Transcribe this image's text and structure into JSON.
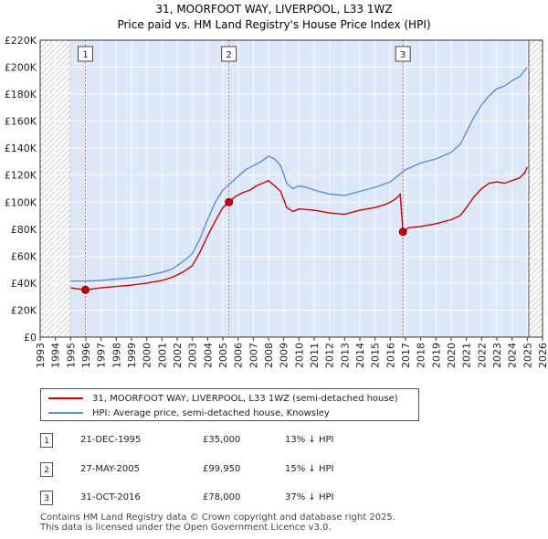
{
  "chart_data": {
    "type": "line",
    "title": "31, MOORFOOT WAY, LIVERPOOL, L33 1WZ",
    "subtitle": "Price paid vs. HM Land Registry's House Price Index (HPI)",
    "xlim": [
      1993,
      2026
    ],
    "ylim": [
      0,
      220000
    ],
    "ytick_values": [
      0,
      20000,
      40000,
      60000,
      80000,
      100000,
      120000,
      140000,
      160000,
      180000,
      200000,
      220000
    ],
    "ytick_labels": [
      "£0",
      "£20K",
      "£40K",
      "£60K",
      "£80K",
      "£100K",
      "£120K",
      "£140K",
      "£160K",
      "£180K",
      "£200K",
      "£220K"
    ],
    "xtick_labels": [
      "1993",
      "1994",
      "1995",
      "1996",
      "1997",
      "1998",
      "1999",
      "2000",
      "2001",
      "2002",
      "2003",
      "2004",
      "2005",
      "2006",
      "2007",
      "2008",
      "2009",
      "2010",
      "2011",
      "2012",
      "2013",
      "2014",
      "2015",
      "2016",
      "2017",
      "2018",
      "2019",
      "2020",
      "2021",
      "2022",
      "2023",
      "2024",
      "2025",
      "2026"
    ],
    "hatched_ranges": [
      [
        1993,
        1995.0
      ],
      [
        2025.1,
        2026
      ]
    ],
    "shaded_ranges": [
      [
        1995.0,
        2025.1
      ]
    ],
    "colors": {
      "property": "#cc0000",
      "hpi": "#5b8ed6",
      "shade": "#dce8f8",
      "vline": "#e06666"
    },
    "series": [
      {
        "name": "31, MOORFOOT WAY, LIVERPOOL, L33 1WZ (semi-detached house)",
        "color": "#cc0000",
        "x": [
          1995.0,
          1995.97,
          1997.0,
          1998.0,
          1999.0,
          2000.0,
          2001.0,
          2001.6,
          2002.0,
          2002.5,
          2003.0,
          2003.5,
          2004.0,
          2004.5,
          2005.0,
          2005.4,
          2005.8,
          2006.3,
          2006.8,
          2007.2,
          2007.6,
          2008.0,
          2008.4,
          2008.8,
          2009.2,
          2009.6,
          2010.0,
          2011.0,
          2012.0,
          2013.0,
          2014.0,
          2015.0,
          2015.6,
          2016.0,
          2016.3,
          2016.5,
          2016.65,
          2016.83,
          2017.2,
          2018.0,
          2019.0,
          2020.0,
          2020.6,
          2021.0,
          2021.5,
          2022.0,
          2022.5,
          2023.0,
          2023.5,
          2024.0,
          2024.5,
          2024.85,
          2025.0
        ],
        "y": [
          36500,
          35000,
          36500,
          37500,
          38500,
          40000,
          42000,
          44000,
          46000,
          49000,
          53000,
          63000,
          75000,
          86000,
          96000,
          99950,
          104000,
          107000,
          109000,
          112000,
          114000,
          116000,
          112000,
          108000,
          96000,
          93000,
          95000,
          94000,
          92000,
          91000,
          94000,
          96000,
          98000,
          100000,
          102000,
          104000,
          106000,
          78000,
          81000,
          82000,
          84000,
          87000,
          90000,
          96000,
          104000,
          110000,
          114000,
          115000,
          114000,
          116000,
          118000,
          122000,
          126000
        ]
      },
      {
        "name": "HPI: Average price, semi-detached house, Knowsley",
        "color": "#5b8ed6",
        "x": [
          1995.0,
          1996.0,
          1997.0,
          1998.0,
          1999.0,
          2000.0,
          2001.0,
          2001.6,
          2002.0,
          2002.5,
          2003.0,
          2003.5,
          2004.0,
          2004.5,
          2005.0,
          2005.5,
          2006.0,
          2006.5,
          2007.0,
          2007.5,
          2008.0,
          2008.4,
          2008.8,
          2009.2,
          2009.6,
          2010.0,
          2010.5,
          2011.0,
          2012.0,
          2013.0,
          2014.0,
          2015.0,
          2016.0,
          2017.0,
          2018.0,
          2019.0,
          2020.0,
          2020.6,
          2021.0,
          2021.5,
          2022.0,
          2022.5,
          2023.0,
          2023.5,
          2024.0,
          2024.5,
          2025.0
        ],
        "y": [
          41500,
          41500,
          42000,
          43000,
          44000,
          45500,
          48000,
          50000,
          53000,
          57000,
          62000,
          73000,
          87000,
          100000,
          109000,
          114000,
          119000,
          124000,
          127000,
          130000,
          134000,
          132000,
          127000,
          114000,
          110000,
          112000,
          111000,
          109000,
          106000,
          105000,
          108000,
          111000,
          115000,
          124000,
          129000,
          132000,
          137000,
          143000,
          152000,
          163000,
          172000,
          179000,
          184000,
          186000,
          190000,
          193000,
          200000
        ]
      }
    ],
    "sales": [
      {
        "label": "1",
        "x": 1995.97,
        "y": 35000
      },
      {
        "label": "2",
        "x": 2005.4,
        "y": 99950
      },
      {
        "label": "3",
        "x": 2016.83,
        "y": 78000
      }
    ]
  },
  "legend": {
    "property_label": "31, MOORFOOT WAY, LIVERPOOL, L33 1WZ (semi-detached house)",
    "hpi_label": "HPI: Average price, semi-detached house, Knowsley"
  },
  "sales_table": [
    {
      "num": "1",
      "date": "21-DEC-1995",
      "price": "£35,000",
      "hpi": "13% ↓ HPI"
    },
    {
      "num": "2",
      "date": "27-MAY-2005",
      "price": "£99,950",
      "hpi": "15% ↓ HPI"
    },
    {
      "num": "3",
      "date": "31-OCT-2016",
      "price": "£78,000",
      "hpi": "37% ↓ HPI"
    }
  ],
  "footer": {
    "line1": "Contains HM Land Registry data © Crown copyright and database right 2025.",
    "line2": "This data is licensed under the Open Government Licence v3.0."
  }
}
